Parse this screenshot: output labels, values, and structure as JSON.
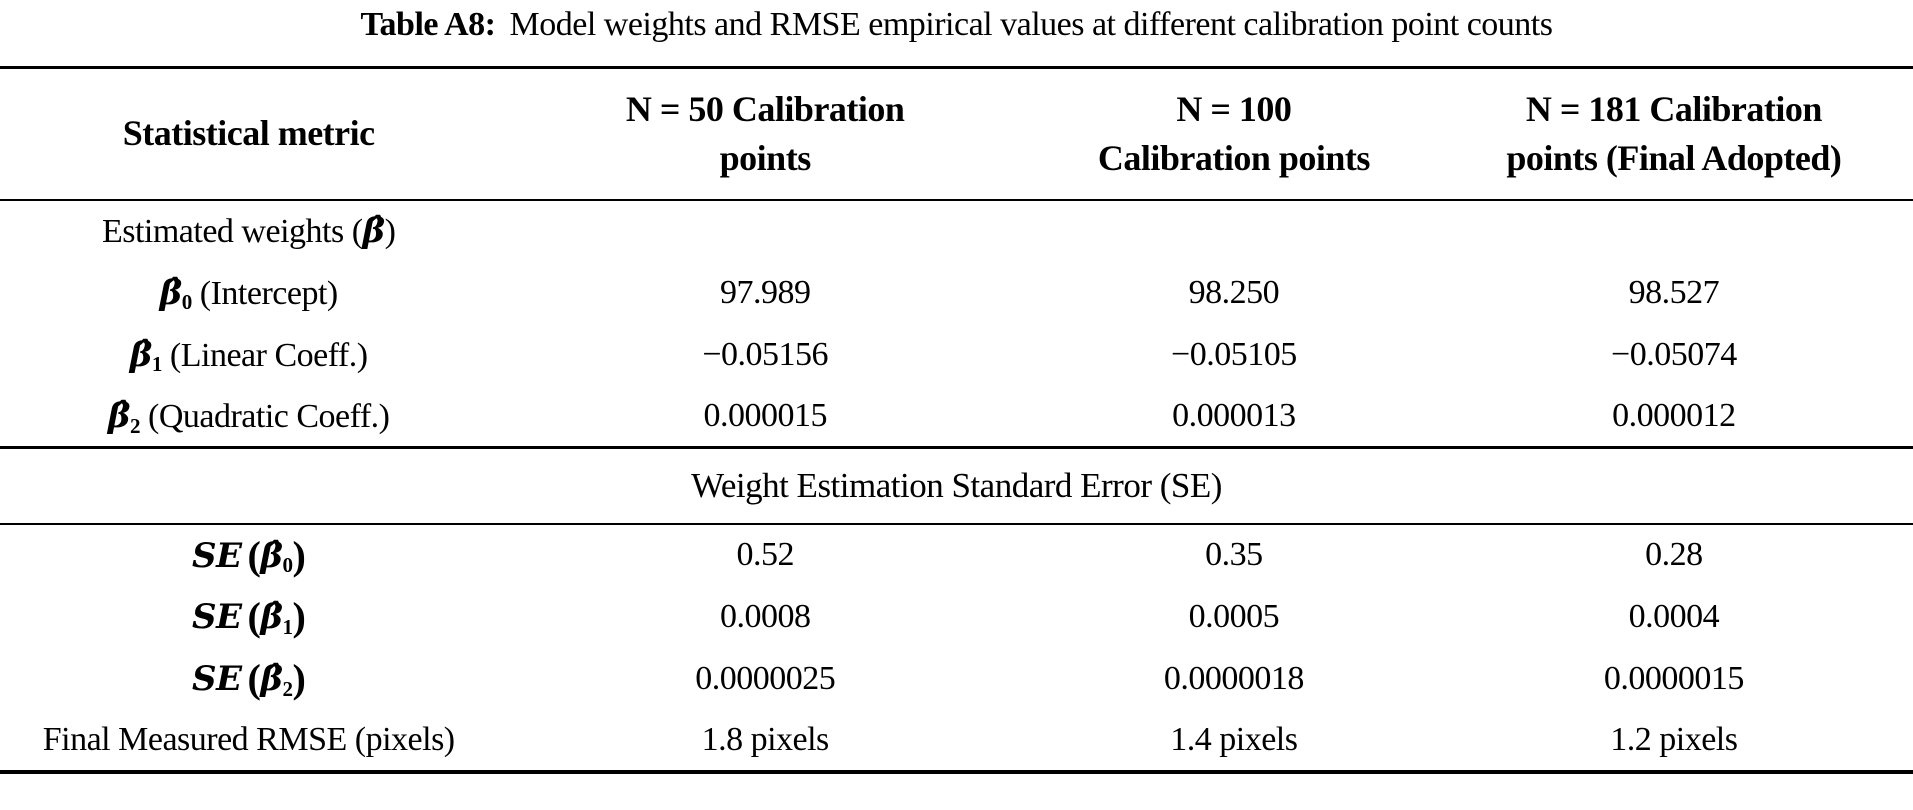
{
  "title": {
    "label": "Table A8:",
    "text": "Model weights and RMSE empirical values at different calibration point counts"
  },
  "header": {
    "col1": "Statistical metric",
    "col2_line1": "N = 50 Calibration",
    "col2_line2": "points",
    "col3_line1": "N = 100",
    "col3_line2": "Calibration points",
    "col4_line1": "N = 181 Calibration",
    "col4_line2": "points (Final Adopted)"
  },
  "weights_section": {
    "group_pre": "Estimated weights (",
    "group_symbol": "β̂",
    "group_post": ")",
    "rows": [
      {
        "symbol": "β̂",
        "sub": "0",
        "desc": "(Intercept)",
        "v1": "97.989",
        "v2": "98.250",
        "v3": "98.527"
      },
      {
        "symbol": "β̂",
        "sub": "1",
        "desc": "(Linear Coeff.)",
        "v1": "−0.05156",
        "v2": "−0.05105",
        "v3": "−0.05074"
      },
      {
        "symbol": "β̂",
        "sub": "2",
        "desc": "(Quadratic Coeff.)",
        "v1": "0.000015",
        "v2": "0.000013",
        "v3": "0.000012"
      }
    ]
  },
  "se_section": {
    "header": "Weight Estimation Standard Error (SE)",
    "rows": [
      {
        "fn": "SE",
        "open": "(",
        "symbol": "β̂",
        "sub": "0",
        "close": ")",
        "v1": "0.52",
        "v2": "0.35",
        "v3": "0.28"
      },
      {
        "fn": "SE",
        "open": "(",
        "symbol": "β̂",
        "sub": "1",
        "close": ")",
        "v1": "0.0008",
        "v2": "0.0005",
        "v3": "0.0004"
      },
      {
        "fn": "SE",
        "open": "(",
        "symbol": "β̂",
        "sub": "2",
        "close": ")",
        "v1": "0.0000025",
        "v2": "0.0000018",
        "v3": "0.0000015"
      }
    ]
  },
  "rmse_row": {
    "label": "Final Measured RMSE (pixels)",
    "v1": "1.8 pixels",
    "v2": "1.4 pixels",
    "v3": "1.2 pixels"
  }
}
